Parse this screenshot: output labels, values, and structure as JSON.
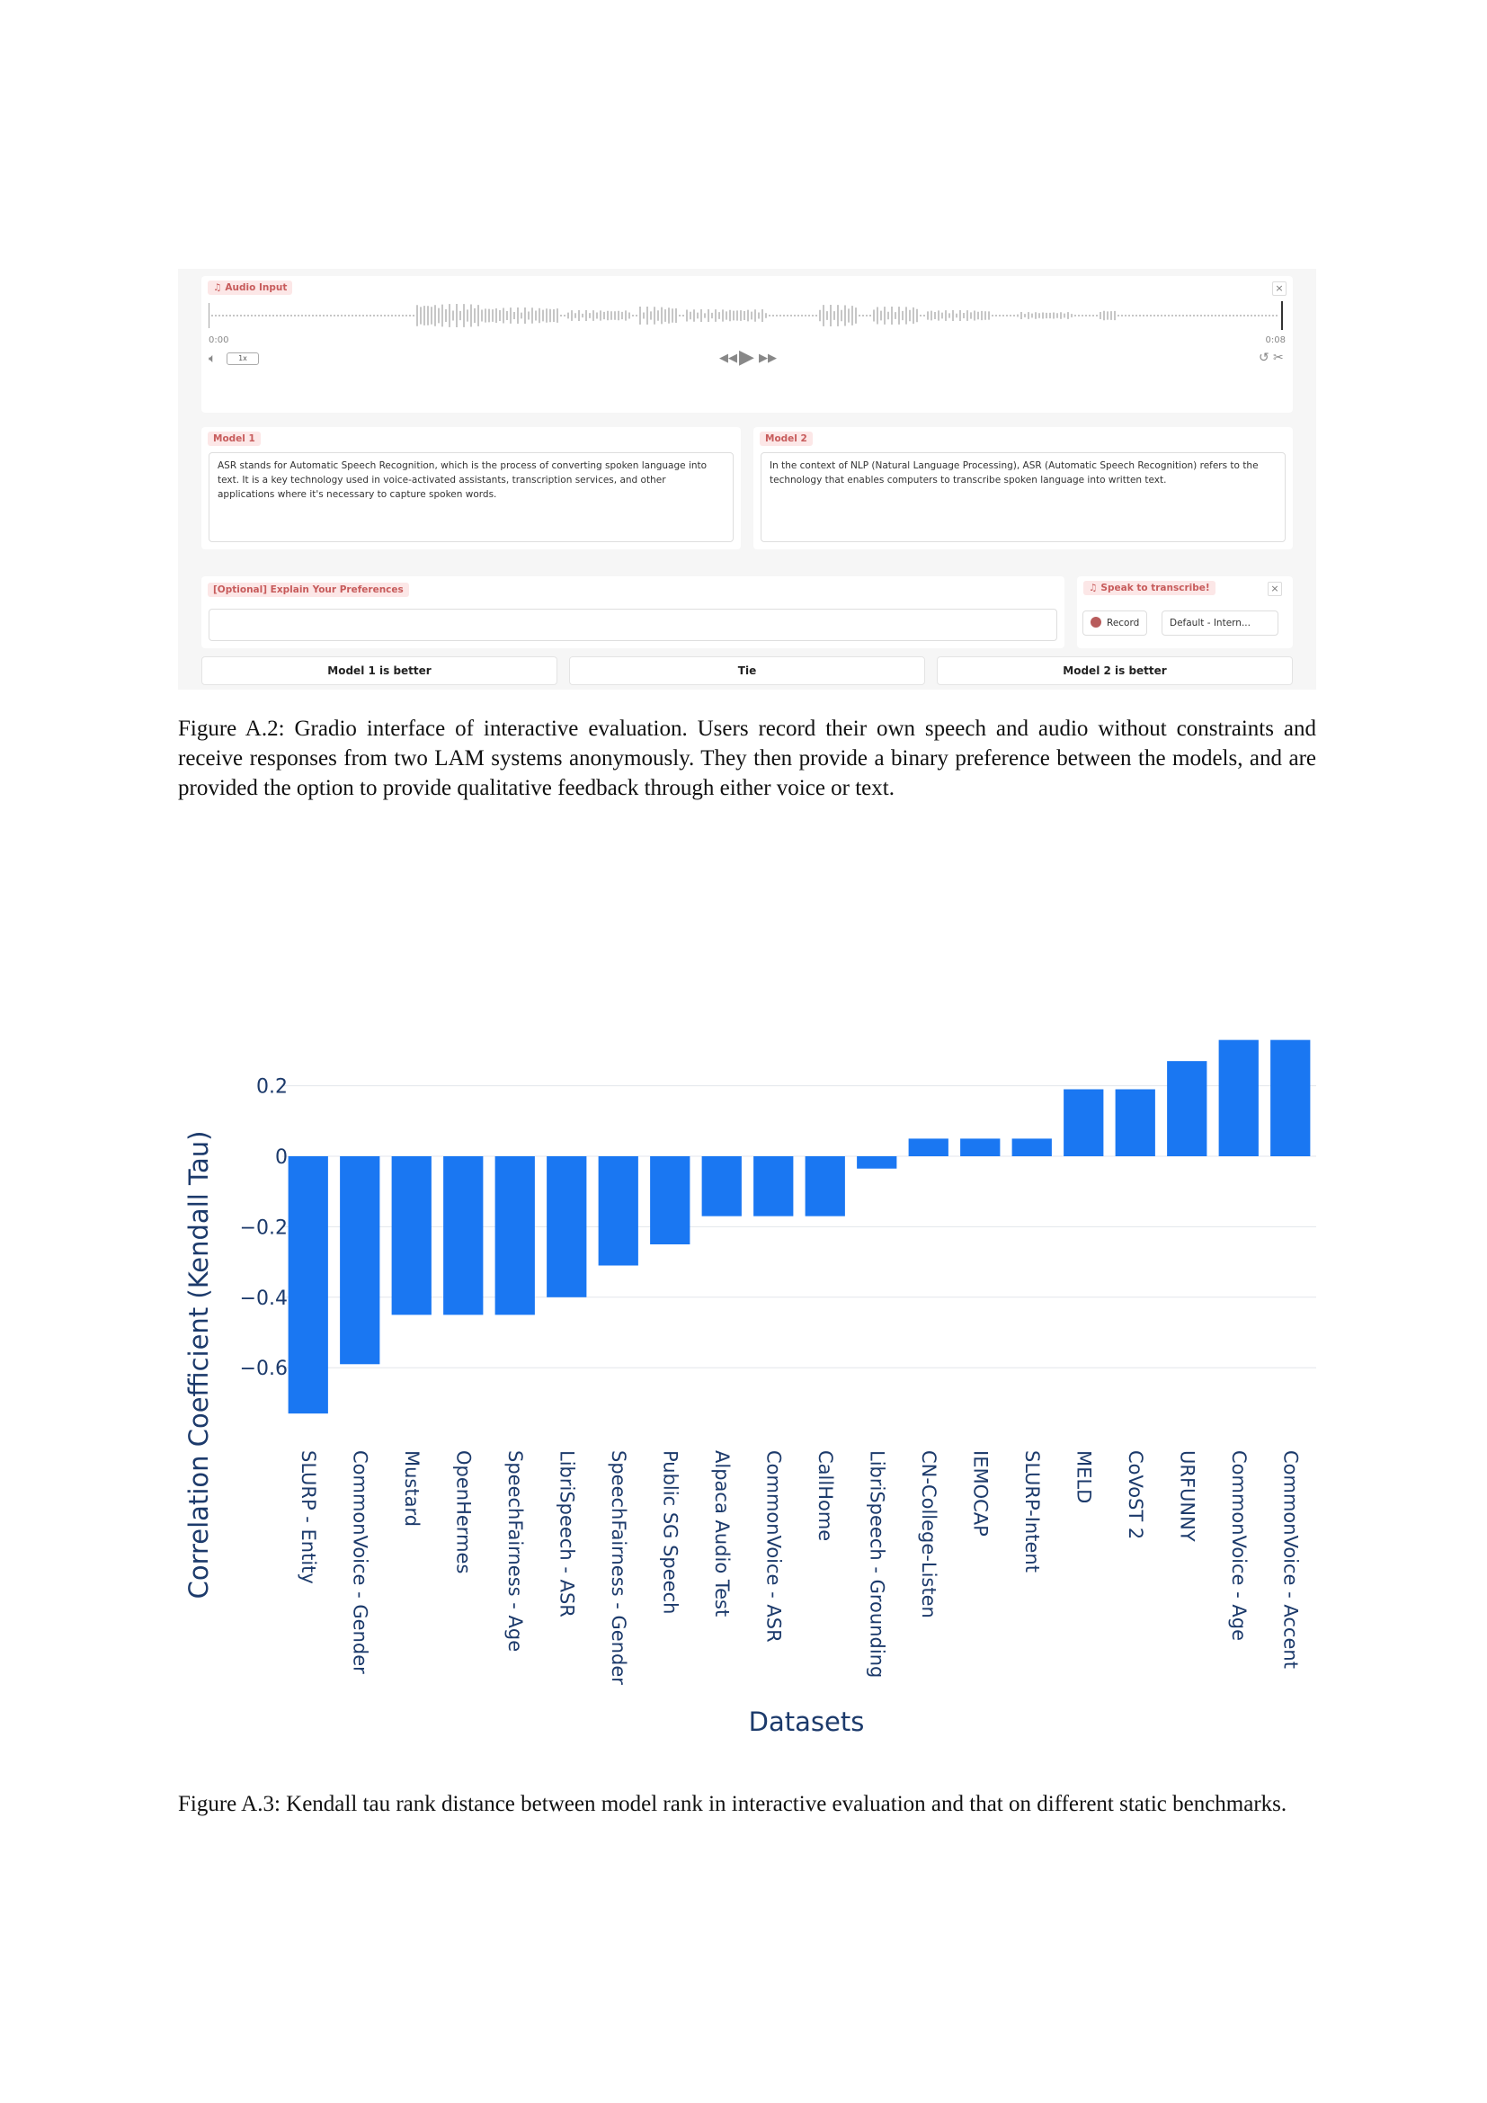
{
  "ui": {
    "audio_input": {
      "label": "Audio Input",
      "close": "×",
      "time_start": "0:00",
      "time_end": "0:08",
      "speed": "1x"
    },
    "model1": {
      "label": "Model 1",
      "text": "ASR stands for Automatic Speech Recognition, which is the process of converting spoken language into text. It is a key technology used in voice-activated assistants, transcription services, and other applications where it's necessary to capture spoken words."
    },
    "model2": {
      "label": "Model 2",
      "text": "In the context of NLP (Natural Language Processing), ASR (Automatic Speech Recognition) refers to the technology that enables computers to transcribe spoken language into written text."
    },
    "preferences": {
      "label": "[Optional] Explain Your Preferences",
      "value": ""
    },
    "speak": {
      "label": "Speak to transcribe!",
      "close": "×",
      "record": "Record",
      "device": "Default - Intern..."
    },
    "buttons": {
      "model1_better": "Model 1 is better",
      "tie": "Tie",
      "model2_better": "Model 2 is better"
    },
    "colors": {
      "tag_bg": "#fce7e7",
      "tag_text": "#c75b5b",
      "record_dot": "#b85c5c"
    }
  },
  "captions": {
    "fig_a2": "Figure A.2: Gradio interface of interactive evaluation. Users record their own speech and audio without constraints and receive responses from two LAM systems anonymously. They then provide a binary preference between the models, and are provided the option to provide qualitative feedback through either voice or text.",
    "fig_a3": "Figure A.3: Kendall tau rank distance between model rank in interactive evaluation and that on different static benchmarks."
  },
  "chart_data": {
    "type": "bar",
    "title": "",
    "xlabel": "Datasets",
    "ylabel": "Correlation Coefficient (Kendall Tau)",
    "ylim": [
      -0.72,
      0.33
    ],
    "yticks": [
      0.2,
      0,
      -0.2,
      -0.4,
      -0.6
    ],
    "ytick_labels": [
      "0.2",
      "0",
      "−0.2",
      "−0.4",
      "−0.6"
    ],
    "grid": true,
    "bar_color": "#1a77f2",
    "categories": [
      "SLURP - Entity",
      "CommonVoice - Gender",
      "Mustard",
      "OpenHermes",
      "SpeechFairness - Age",
      "LibriSpeech - ASR",
      "SpeechFairness - Gender",
      "Public SG Speech",
      "Alpaca Audio Test",
      "CommonVoice - ASR",
      "CallHome",
      "LibriSpeech - Grounding",
      "CN-College-Listen",
      "IEMOCAP",
      "SLURP-Intent",
      "MELD",
      "CoVoST 2",
      "URFUNNY",
      "CommonVoice - Age",
      "CommonVoice - Accent"
    ],
    "values": [
      -0.73,
      -0.59,
      -0.45,
      -0.45,
      -0.45,
      -0.4,
      -0.31,
      -0.25,
      -0.17,
      -0.17,
      -0.17,
      -0.035,
      0.05,
      0.05,
      0.05,
      0.19,
      0.19,
      0.27,
      0.33,
      0.33
    ]
  }
}
